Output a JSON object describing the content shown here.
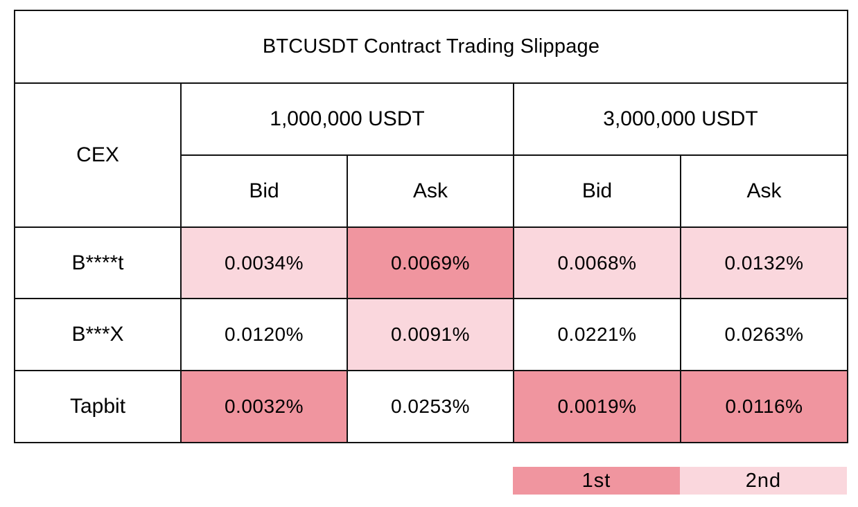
{
  "table": {
    "title": "BTCUSDT Contract Trading Slippage",
    "cex_header": "CEX",
    "groups": [
      {
        "label": "1,000,000 USDT",
        "bid_label": "Bid",
        "ask_label": "Ask"
      },
      {
        "label": "3,000,000 USDT",
        "bid_label": "Bid",
        "ask_label": "Ask"
      }
    ],
    "rows": [
      {
        "name": "B****t",
        "cells": [
          {
            "value": "0.0034%",
            "rank": "2nd"
          },
          {
            "value": "0.0069%",
            "rank": "1st"
          },
          {
            "value": "0.0068%",
            "rank": "2nd"
          },
          {
            "value": "0.0132%",
            "rank": "2nd"
          }
        ]
      },
      {
        "name": "B***X",
        "cells": [
          {
            "value": "0.0120%",
            "rank": ""
          },
          {
            "value": "0.0091%",
            "rank": "2nd"
          },
          {
            "value": "0.0221%",
            "rank": ""
          },
          {
            "value": "0.0263%",
            "rank": ""
          }
        ]
      },
      {
        "name": "Tapbit",
        "cells": [
          {
            "value": "0.0032%",
            "rank": "1st"
          },
          {
            "value": "0.0253%",
            "rank": ""
          },
          {
            "value": "0.0019%",
            "rank": "1st"
          },
          {
            "value": "0.0116%",
            "rank": "1st"
          }
        ]
      }
    ]
  },
  "legend": {
    "first_label": "1st",
    "second_label": "2nd",
    "first_color": "#f0959f",
    "second_color": "#fad7dd"
  }
}
